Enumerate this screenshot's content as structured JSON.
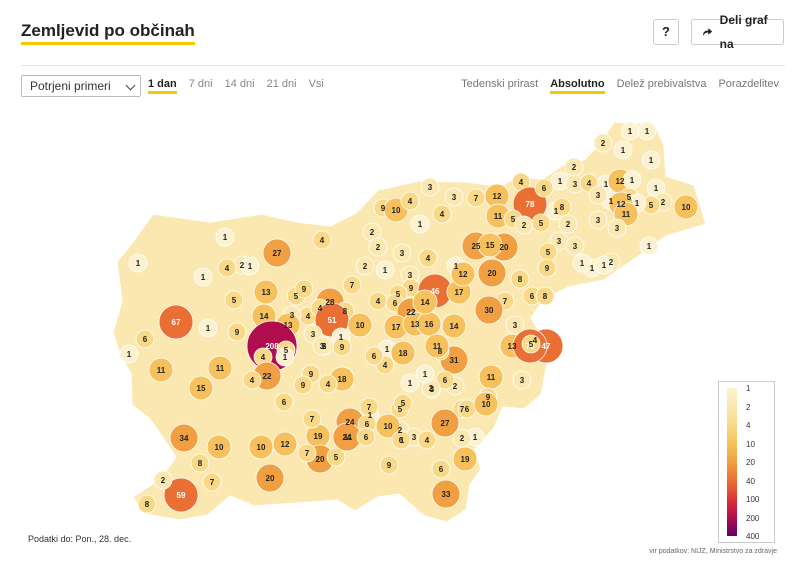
{
  "header": {
    "title": "Zemljevid po občinah",
    "help_label": "?",
    "share_label": "Deli graf na"
  },
  "controls": {
    "metric_select": "Potrjeni primeri",
    "periods": [
      "1 dan",
      "7 dni",
      "14 dni",
      "21 dni",
      "Vsi"
    ],
    "active_period": "1 dan",
    "modes": [
      "Tedenski prirast",
      "Absolutno",
      "Delež prebivalstva",
      "Porazdelitev"
    ],
    "active_mode": "Absolutno"
  },
  "legend": {
    "ticks": [
      "1",
      "2",
      "4",
      "10",
      "20",
      "40",
      "100",
      "200",
      "400"
    ],
    "colors": [
      "#fcf2d2",
      "#fbe7b0",
      "#f9d987",
      "#f6c15c",
      "#f0a043",
      "#e96f34",
      "#dc3538",
      "#b00d4e",
      "#5e0167"
    ]
  },
  "map": {
    "values": [
      "1",
      "1",
      "2",
      "1",
      "1",
      "2",
      "1",
      "3",
      "4",
      "1",
      "12",
      "1",
      "1",
      "5",
      "10",
      "2",
      "5",
      "1",
      "1",
      "3",
      "12",
      "11",
      "3",
      "3",
      "1",
      "2",
      "1",
      "1",
      "4",
      "78",
      "6",
      "1",
      "8",
      "2",
      "9",
      "10",
      "3",
      "4",
      "3",
      "7",
      "12",
      "4",
      "11",
      "5",
      "2",
      "5",
      "3",
      "1",
      "1",
      "2",
      "4",
      "1",
      "27",
      "1",
      "4",
      "2",
      "2",
      "1",
      "3",
      "2",
      "3",
      "1",
      "1",
      "25",
      "20",
      "5",
      "3",
      "1",
      "15",
      "4",
      "9",
      "20",
      "8",
      "67",
      "13",
      "5",
      "9",
      "28",
      "7",
      "4",
      "3",
      "5",
      "4",
      "6",
      "22",
      "46",
      "17",
      "12",
      "7",
      "6",
      "8",
      "14",
      "9",
      "30",
      "5",
      "4",
      "8",
      "51",
      "10",
      "13",
      "14",
      "17",
      "13",
      "16",
      "14",
      "3",
      "4",
      "6",
      "1",
      "1",
      "9",
      "208",
      "3",
      "1",
      "2",
      "5",
      "9",
      "5",
      "1",
      "4",
      "31",
      "11",
      "11",
      "4",
      "1",
      "3",
      "6",
      "18",
      "8",
      "11",
      "13",
      "47",
      "76",
      "2",
      "5",
      "15",
      "22",
      "9",
      "18",
      "4",
      "1",
      "3",
      "6",
      "2",
      "11",
      "3",
      "9",
      "7",
      "5",
      "2",
      "10",
      "1",
      "5",
      "7",
      "12",
      "19",
      "20",
      "24",
      "11",
      "6",
      "1",
      "10",
      "27",
      "6",
      "10",
      "3",
      "6",
      "1",
      "34",
      "10",
      "8",
      "7",
      "5",
      "24",
      "6",
      "9",
      "4",
      "19",
      "2",
      "59",
      "7",
      "20",
      "2",
      "6",
      "33",
      "8",
      "7",
      "9",
      "4",
      "6",
      "1"
    ]
  },
  "footer": {
    "date_note": "Podatki do: Pon., 28. dec.",
    "source": "vir podatkov: NIJZ, Ministrstvo za zdravje"
  }
}
